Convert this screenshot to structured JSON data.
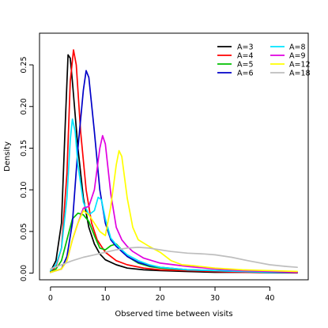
{
  "chart_data": {
    "type": "line",
    "xlabel": "Observed time between visits",
    "ylabel": "Density",
    "xlim": [
      -2,
      47
    ],
    "ylim": [
      -0.008,
      0.288
    ],
    "x_ticks": [
      0,
      10,
      20,
      30,
      40
    ],
    "y_ticks": [
      0.0,
      0.05,
      0.1,
      0.15,
      0.2,
      0.25
    ],
    "y_tick_labels": [
      "0.00",
      "0.05",
      "0.10",
      "0.15",
      "0.20",
      "0.25"
    ],
    "grid": false,
    "legend_position": "top-right",
    "series": [
      {
        "name": "A=3",
        "color": "#000000",
        "points": [
          [
            0,
            0.002
          ],
          [
            1,
            0.015
          ],
          [
            2,
            0.06
          ],
          [
            2.7,
            0.18
          ],
          [
            3.2,
            0.262
          ],
          [
            3.6,
            0.258
          ],
          [
            4,
            0.23
          ],
          [
            5,
            0.15
          ],
          [
            6,
            0.09
          ],
          [
            7,
            0.055
          ],
          [
            8,
            0.035
          ],
          [
            9,
            0.023
          ],
          [
            10,
            0.016
          ],
          [
            12,
            0.01
          ],
          [
            14,
            0.006
          ],
          [
            17,
            0.004
          ],
          [
            20,
            0.003
          ],
          [
            25,
            0.002
          ],
          [
            30,
            0.001
          ],
          [
            35,
            0.001
          ],
          [
            40,
            0.0005
          ],
          [
            45,
            0.0003
          ]
        ]
      },
      {
        "name": "A=4",
        "color": "#ff0000",
        "points": [
          [
            0,
            0.001
          ],
          [
            1,
            0.008
          ],
          [
            2,
            0.03
          ],
          [
            3,
            0.12
          ],
          [
            3.6,
            0.23
          ],
          [
            4.2,
            0.268
          ],
          [
            4.7,
            0.25
          ],
          [
            5.5,
            0.17
          ],
          [
            6.5,
            0.1
          ],
          [
            7.5,
            0.06
          ],
          [
            8.5,
            0.04
          ],
          [
            10,
            0.025
          ],
          [
            12,
            0.015
          ],
          [
            14,
            0.01
          ],
          [
            17,
            0.006
          ],
          [
            20,
            0.004
          ],
          [
            25,
            0.003
          ],
          [
            30,
            0.002
          ],
          [
            35,
            0.001
          ],
          [
            40,
            0.001
          ],
          [
            45,
            0.0005
          ]
        ]
      },
      {
        "name": "A=5",
        "color": "#00c000",
        "points": [
          [
            0,
            0.001
          ],
          [
            1,
            0.005
          ],
          [
            2,
            0.015
          ],
          [
            3,
            0.04
          ],
          [
            4,
            0.065
          ],
          [
            5,
            0.072
          ],
          [
            6,
            0.07
          ],
          [
            7,
            0.062
          ],
          [
            8,
            0.045
          ],
          [
            9,
            0.03
          ],
          [
            10,
            0.028
          ],
          [
            11,
            0.033
          ],
          [
            12,
            0.035
          ],
          [
            13,
            0.028
          ],
          [
            14,
            0.02
          ],
          [
            16,
            0.012
          ],
          [
            18,
            0.008
          ],
          [
            20,
            0.006
          ],
          [
            25,
            0.004
          ],
          [
            30,
            0.003
          ],
          [
            35,
            0.002
          ],
          [
            40,
            0.001
          ],
          [
            45,
            0.001
          ]
        ]
      },
      {
        "name": "A=6",
        "color": "#0000c8",
        "points": [
          [
            0,
            0.001
          ],
          [
            2,
            0.005
          ],
          [
            3,
            0.02
          ],
          [
            4,
            0.06
          ],
          [
            5,
            0.15
          ],
          [
            6,
            0.22
          ],
          [
            6.5,
            0.243
          ],
          [
            7,
            0.235
          ],
          [
            8,
            0.17
          ],
          [
            9,
            0.1
          ],
          [
            10,
            0.06
          ],
          [
            11,
            0.04
          ],
          [
            12,
            0.032
          ],
          [
            13,
            0.026
          ],
          [
            14,
            0.02
          ],
          [
            16,
            0.013
          ],
          [
            18,
            0.009
          ],
          [
            20,
            0.007
          ],
          [
            25,
            0.004
          ],
          [
            30,
            0.003
          ],
          [
            35,
            0.002
          ],
          [
            40,
            0.001
          ],
          [
            45,
            0.001
          ]
        ]
      },
      {
        "name": "A=8",
        "color": "#00e5ff",
        "points": [
          [
            0,
            0.003
          ],
          [
            1,
            0.01
          ],
          [
            2,
            0.03
          ],
          [
            3,
            0.09
          ],
          [
            3.6,
            0.16
          ],
          [
            4,
            0.185
          ],
          [
            4.5,
            0.17
          ],
          [
            5,
            0.13
          ],
          [
            6,
            0.085
          ],
          [
            7,
            0.07
          ],
          [
            8,
            0.075
          ],
          [
            8.7,
            0.091
          ],
          [
            9.3,
            0.088
          ],
          [
            10,
            0.065
          ],
          [
            11,
            0.042
          ],
          [
            12,
            0.034
          ],
          [
            13,
            0.028
          ],
          [
            14,
            0.022
          ],
          [
            16,
            0.015
          ],
          [
            18,
            0.01
          ],
          [
            20,
            0.007
          ],
          [
            25,
            0.004
          ],
          [
            30,
            0.003
          ],
          [
            35,
            0.002
          ],
          [
            40,
            0.001
          ],
          [
            45,
            0.001
          ]
        ]
      },
      {
        "name": "A=9",
        "color": "#e000e0",
        "points": [
          [
            0,
            0.001
          ],
          [
            2,
            0.005
          ],
          [
            3,
            0.015
          ],
          [
            4,
            0.04
          ],
          [
            5,
            0.06
          ],
          [
            6,
            0.078
          ],
          [
            7,
            0.08
          ],
          [
            8,
            0.1
          ],
          [
            9,
            0.15
          ],
          [
            9.5,
            0.165
          ],
          [
            10,
            0.155
          ],
          [
            11,
            0.095
          ],
          [
            12,
            0.055
          ],
          [
            13,
            0.04
          ],
          [
            14,
            0.032
          ],
          [
            15,
            0.026
          ],
          [
            17,
            0.018
          ],
          [
            20,
            0.012
          ],
          [
            25,
            0.008
          ],
          [
            30,
            0.005
          ],
          [
            35,
            0.003
          ],
          [
            40,
            0.002
          ],
          [
            45,
            0.001
          ]
        ]
      },
      {
        "name": "A=12",
        "color": "#ffff00",
        "points": [
          [
            0,
            0.001
          ],
          [
            2,
            0.005
          ],
          [
            3,
            0.015
          ],
          [
            4,
            0.04
          ],
          [
            5,
            0.06
          ],
          [
            6,
            0.075
          ],
          [
            7,
            0.07
          ],
          [
            8,
            0.06
          ],
          [
            9,
            0.05
          ],
          [
            10,
            0.045
          ],
          [
            11,
            0.08
          ],
          [
            12,
            0.13
          ],
          [
            12.5,
            0.147
          ],
          [
            13,
            0.14
          ],
          [
            14,
            0.09
          ],
          [
            15,
            0.055
          ],
          [
            16,
            0.04
          ],
          [
            18,
            0.032
          ],
          [
            20,
            0.025
          ],
          [
            22,
            0.015
          ],
          [
            24,
            0.01
          ],
          [
            26,
            0.009
          ],
          [
            30,
            0.006
          ],
          [
            35,
            0.004
          ],
          [
            40,
            0.003
          ],
          [
            45,
            0.002
          ]
        ]
      },
      {
        "name": "A=18",
        "color": "#bebebe",
        "points": [
          [
            0,
            0.005
          ],
          [
            2,
            0.01
          ],
          [
            4,
            0.015
          ],
          [
            6,
            0.019
          ],
          [
            8,
            0.022
          ],
          [
            10,
            0.025
          ],
          [
            12,
            0.028
          ],
          [
            14,
            0.03
          ],
          [
            16,
            0.031
          ],
          [
            18,
            0.03
          ],
          [
            20,
            0.028
          ],
          [
            22,
            0.026
          ],
          [
            25,
            0.024
          ],
          [
            28,
            0.023
          ],
          [
            30,
            0.022
          ],
          [
            33,
            0.019
          ],
          [
            36,
            0.015
          ],
          [
            40,
            0.01
          ],
          [
            43,
            0.008
          ],
          [
            45,
            0.007
          ]
        ]
      }
    ]
  }
}
